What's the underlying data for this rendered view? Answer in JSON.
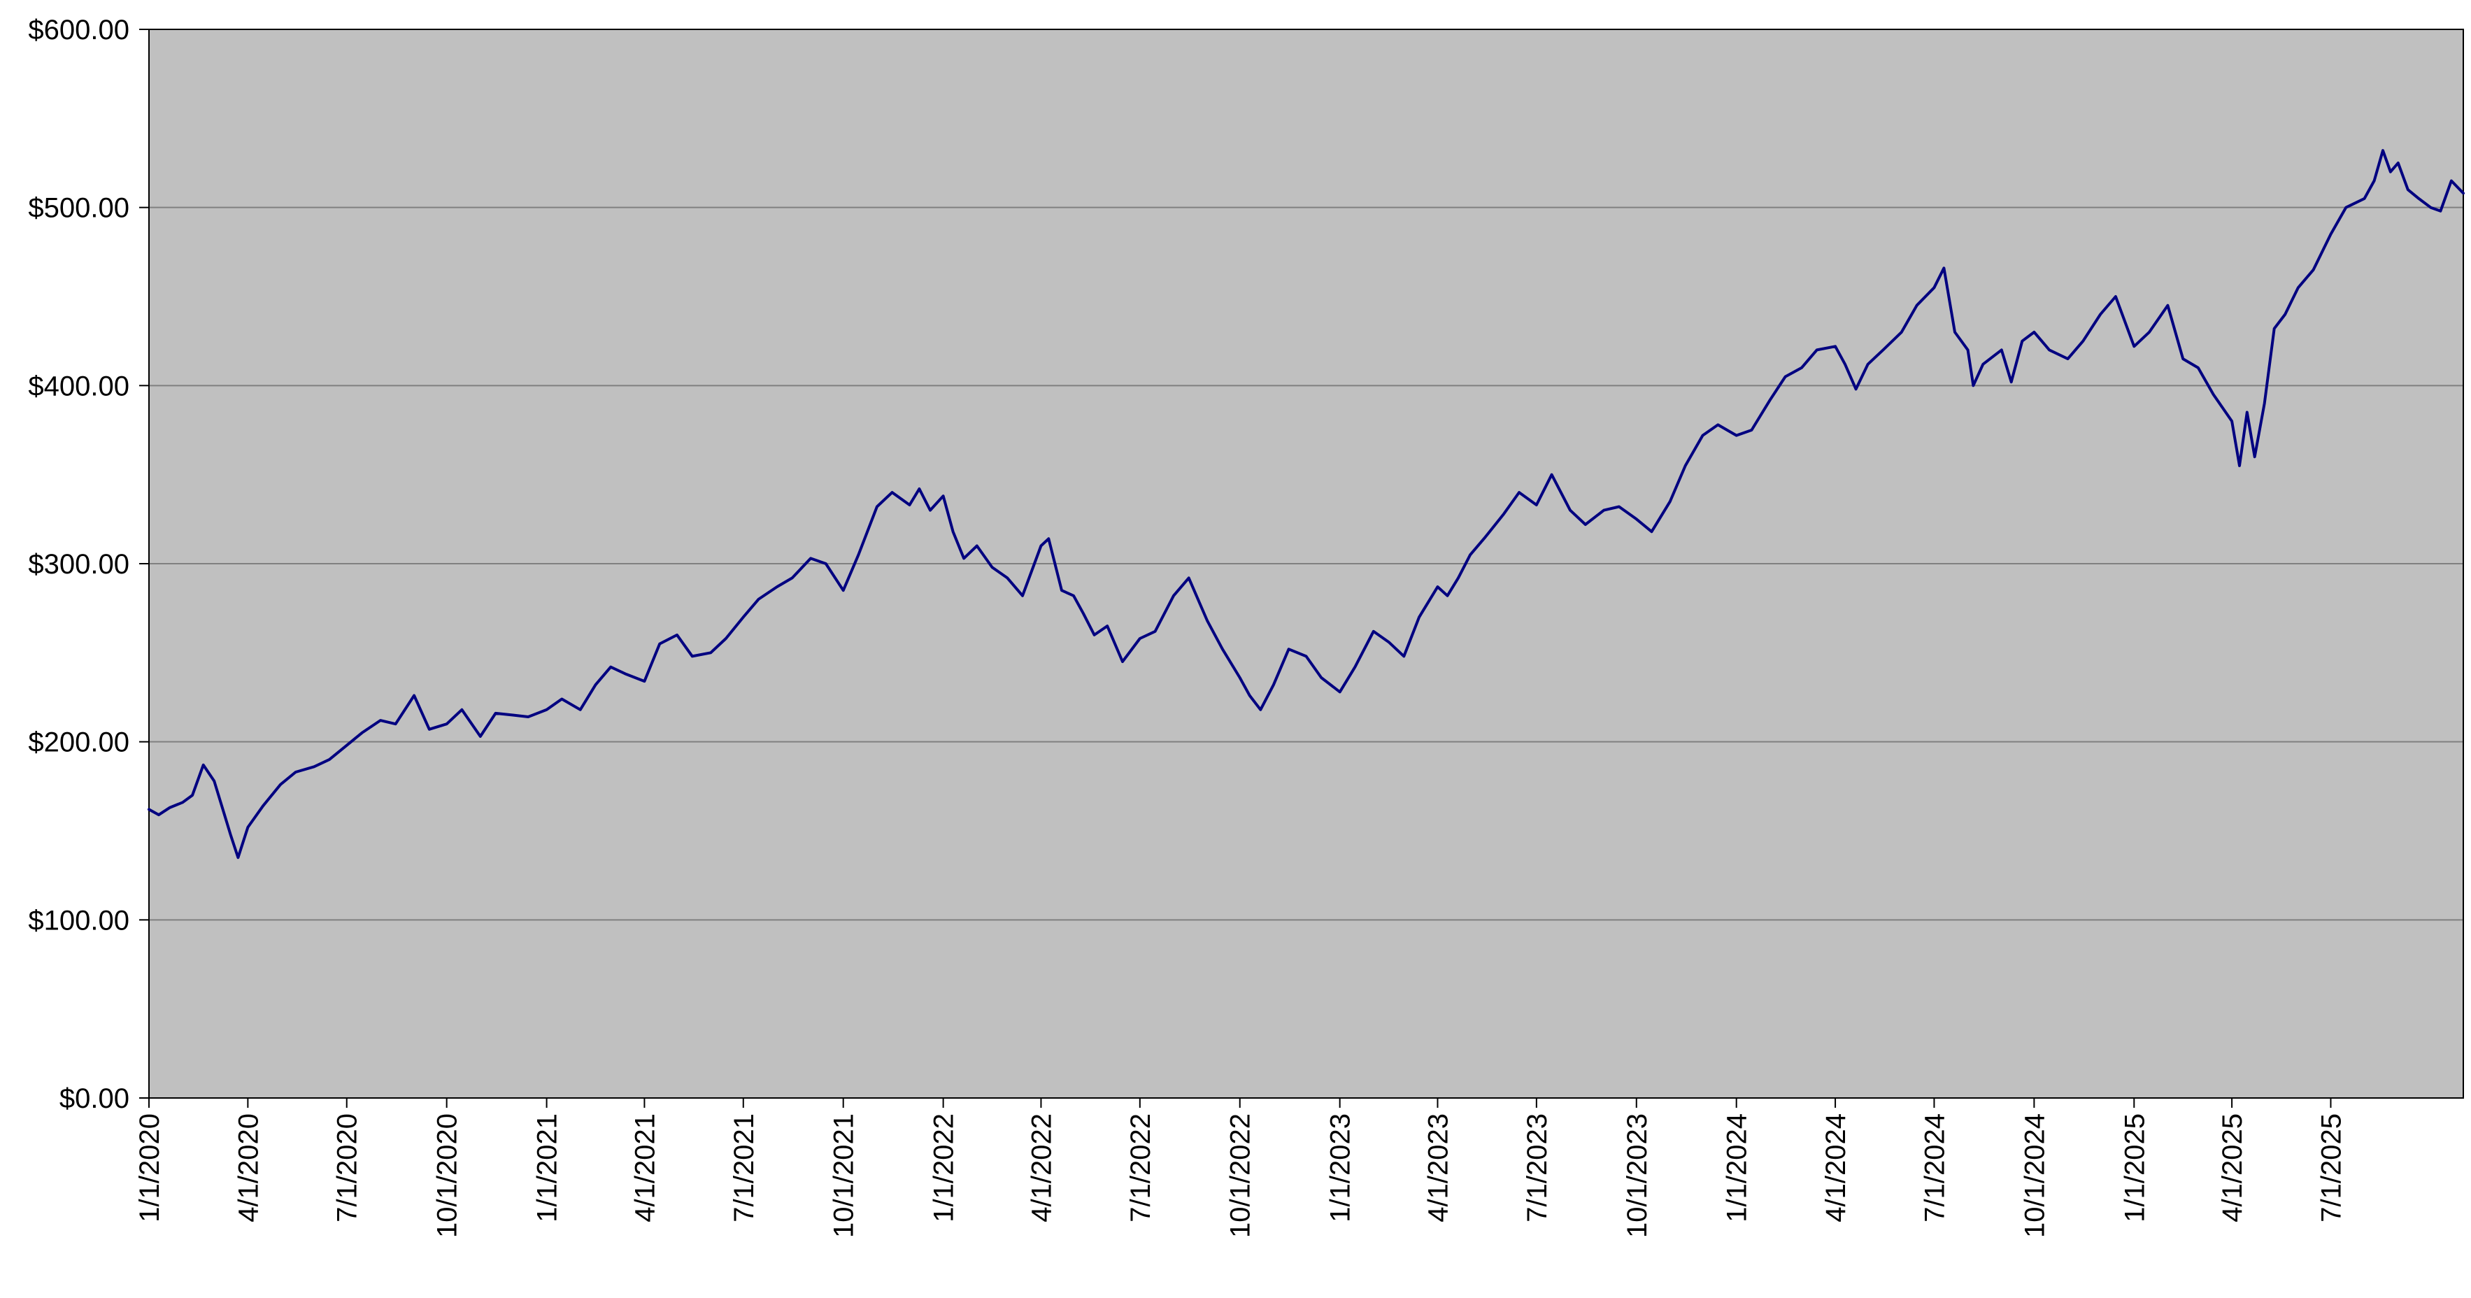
{
  "chart_data": {
    "type": "line",
    "title": "",
    "xlabel": "",
    "ylabel": "",
    "x_range": [
      "2020-01-01",
      "2025-10-31"
    ],
    "ylim": [
      0,
      600
    ],
    "y_ticks": [
      0,
      100,
      200,
      300,
      400,
      500,
      600
    ],
    "y_tick_labels": [
      "$0.00",
      "$100.00",
      "$200.00",
      "$300.00",
      "$400.00",
      "$500.00",
      "$600.00"
    ],
    "x_tick_dates": [
      "2020-01-01",
      "2020-04-01",
      "2020-07-01",
      "2020-10-01",
      "2021-01-01",
      "2021-04-01",
      "2021-07-01",
      "2021-10-01",
      "2022-01-01",
      "2022-04-01",
      "2022-07-01",
      "2022-10-01",
      "2023-01-01",
      "2023-04-01",
      "2023-07-01",
      "2023-10-01",
      "2024-01-01",
      "2024-04-01",
      "2024-07-01",
      "2024-10-01",
      "2025-01-01",
      "2025-04-01",
      "2025-07-01"
    ],
    "x_tick_labels": [
      "1/1/2020",
      "4/1/2020",
      "7/1/2020",
      "10/1/2020",
      "1/1/2021",
      "4/1/2021",
      "7/1/2021",
      "10/1/2021",
      "1/1/2022",
      "4/1/2022",
      "7/1/2022",
      "10/1/2022",
      "1/1/2023",
      "4/1/2023",
      "7/1/2023",
      "10/1/2023",
      "1/1/2024",
      "4/1/2024",
      "7/1/2024",
      "10/1/2024",
      "1/1/2025",
      "4/1/2025",
      "7/1/2025"
    ],
    "grid": true,
    "legend": "none",
    "colors": {
      "line": "#000080",
      "plot_background": "#c0c0c0",
      "gridline": "#808080",
      "axis": "#000000"
    },
    "series": [
      {
        "points": [
          [
            "2020-01-01",
            162
          ],
          [
            "2020-01-10",
            159
          ],
          [
            "2020-01-20",
            163
          ],
          [
            "2020-02-01",
            166
          ],
          [
            "2020-02-10",
            170
          ],
          [
            "2020-02-20",
            187
          ],
          [
            "2020-03-01",
            178
          ],
          [
            "2020-03-10",
            160
          ],
          [
            "2020-03-16",
            148
          ],
          [
            "2020-03-23",
            135
          ],
          [
            "2020-04-01",
            152
          ],
          [
            "2020-04-15",
            164
          ],
          [
            "2020-05-01",
            176
          ],
          [
            "2020-05-15",
            183
          ],
          [
            "2020-06-01",
            186
          ],
          [
            "2020-06-15",
            190
          ],
          [
            "2020-07-01",
            198
          ],
          [
            "2020-07-15",
            205
          ],
          [
            "2020-08-01",
            212
          ],
          [
            "2020-08-15",
            210
          ],
          [
            "2020-09-01",
            226
          ],
          [
            "2020-09-15",
            207
          ],
          [
            "2020-10-01",
            210
          ],
          [
            "2020-10-15",
            218
          ],
          [
            "2020-11-01",
            203
          ],
          [
            "2020-11-15",
            216
          ],
          [
            "2020-12-01",
            215
          ],
          [
            "2020-12-15",
            214
          ],
          [
            "2021-01-01",
            218
          ],
          [
            "2021-01-15",
            224
          ],
          [
            "2021-02-01",
            218
          ],
          [
            "2021-02-15",
            232
          ],
          [
            "2021-03-01",
            242
          ],
          [
            "2021-03-15",
            238
          ],
          [
            "2021-04-01",
            234
          ],
          [
            "2021-04-15",
            255
          ],
          [
            "2021-05-01",
            260
          ],
          [
            "2021-05-15",
            248
          ],
          [
            "2021-06-01",
            250
          ],
          [
            "2021-06-15",
            258
          ],
          [
            "2021-07-01",
            270
          ],
          [
            "2021-07-15",
            280
          ],
          [
            "2021-08-01",
            287
          ],
          [
            "2021-08-15",
            292
          ],
          [
            "2021-09-01",
            303
          ],
          [
            "2021-09-15",
            300
          ],
          [
            "2021-10-01",
            285
          ],
          [
            "2021-10-15",
            305
          ],
          [
            "2021-11-01",
            332
          ],
          [
            "2021-11-15",
            340
          ],
          [
            "2021-12-01",
            333
          ],
          [
            "2021-12-10",
            342
          ],
          [
            "2021-12-20",
            330
          ],
          [
            "2022-01-01",
            338
          ],
          [
            "2022-01-10",
            318
          ],
          [
            "2022-01-20",
            303
          ],
          [
            "2022-02-01",
            310
          ],
          [
            "2022-02-15",
            298
          ],
          [
            "2022-03-01",
            292
          ],
          [
            "2022-03-15",
            282
          ],
          [
            "2022-04-01",
            310
          ],
          [
            "2022-04-08",
            314
          ],
          [
            "2022-04-20",
            285
          ],
          [
            "2022-05-01",
            282
          ],
          [
            "2022-05-10",
            272
          ],
          [
            "2022-05-20",
            260
          ],
          [
            "2022-06-01",
            265
          ],
          [
            "2022-06-15",
            245
          ],
          [
            "2022-07-01",
            258
          ],
          [
            "2022-07-15",
            262
          ],
          [
            "2022-08-01",
            282
          ],
          [
            "2022-08-15",
            292
          ],
          [
            "2022-09-01",
            268
          ],
          [
            "2022-09-15",
            252
          ],
          [
            "2022-10-01",
            236
          ],
          [
            "2022-10-10",
            226
          ],
          [
            "2022-10-20",
            218
          ],
          [
            "2022-11-01",
            232
          ],
          [
            "2022-11-15",
            252
          ],
          [
            "2022-12-01",
            248
          ],
          [
            "2022-12-15",
            236
          ],
          [
            "2023-01-01",
            228
          ],
          [
            "2023-01-15",
            242
          ],
          [
            "2023-02-01",
            262
          ],
          [
            "2023-02-15",
            256
          ],
          [
            "2023-03-01",
            248
          ],
          [
            "2023-03-15",
            270
          ],
          [
            "2023-04-01",
            287
          ],
          [
            "2023-04-10",
            282
          ],
          [
            "2023-04-20",
            292
          ],
          [
            "2023-05-01",
            305
          ],
          [
            "2023-05-15",
            315
          ],
          [
            "2023-06-01",
            328
          ],
          [
            "2023-06-15",
            340
          ],
          [
            "2023-07-01",
            333
          ],
          [
            "2023-07-15",
            350
          ],
          [
            "2023-08-01",
            330
          ],
          [
            "2023-08-15",
            322
          ],
          [
            "2023-09-01",
            330
          ],
          [
            "2023-09-15",
            332
          ],
          [
            "2023-10-01",
            325
          ],
          [
            "2023-10-15",
            318
          ],
          [
            "2023-11-01",
            335
          ],
          [
            "2023-11-15",
            355
          ],
          [
            "2023-12-01",
            372
          ],
          [
            "2023-12-15",
            378
          ],
          [
            "2024-01-01",
            372
          ],
          [
            "2024-01-15",
            375
          ],
          [
            "2024-02-01",
            392
          ],
          [
            "2024-02-15",
            405
          ],
          [
            "2024-03-01",
            410
          ],
          [
            "2024-03-15",
            420
          ],
          [
            "2024-04-01",
            422
          ],
          [
            "2024-04-10",
            412
          ],
          [
            "2024-04-20",
            398
          ],
          [
            "2024-05-01",
            412
          ],
          [
            "2024-05-15",
            420
          ],
          [
            "2024-06-01",
            430
          ],
          [
            "2024-06-15",
            445
          ],
          [
            "2024-07-01",
            455
          ],
          [
            "2024-07-10",
            466
          ],
          [
            "2024-07-20",
            430
          ],
          [
            "2024-08-01",
            420
          ],
          [
            "2024-08-06",
            400
          ],
          [
            "2024-08-15",
            412
          ],
          [
            "2024-09-01",
            420
          ],
          [
            "2024-09-10",
            402
          ],
          [
            "2024-09-20",
            425
          ],
          [
            "2024-10-01",
            430
          ],
          [
            "2024-10-15",
            420
          ],
          [
            "2024-11-01",
            415
          ],
          [
            "2024-11-15",
            425
          ],
          [
            "2024-12-01",
            440
          ],
          [
            "2024-12-15",
            450
          ],
          [
            "2025-01-01",
            422
          ],
          [
            "2025-01-15",
            430
          ],
          [
            "2025-02-01",
            445
          ],
          [
            "2025-02-15",
            415
          ],
          [
            "2025-03-01",
            410
          ],
          [
            "2025-03-15",
            395
          ],
          [
            "2025-04-01",
            380
          ],
          [
            "2025-04-08",
            355
          ],
          [
            "2025-04-15",
            385
          ],
          [
            "2025-04-22",
            360
          ],
          [
            "2025-05-01",
            390
          ],
          [
            "2025-05-10",
            432
          ],
          [
            "2025-05-20",
            440
          ],
          [
            "2025-06-01",
            455
          ],
          [
            "2025-06-15",
            465
          ],
          [
            "2025-07-01",
            485
          ],
          [
            "2025-07-15",
            500
          ],
          [
            "2025-08-01",
            505
          ],
          [
            "2025-08-10",
            515
          ],
          [
            "2025-08-18",
            532
          ],
          [
            "2025-08-25",
            520
          ],
          [
            "2025-09-01",
            525
          ],
          [
            "2025-09-10",
            510
          ],
          [
            "2025-09-20",
            505
          ],
          [
            "2025-10-01",
            500
          ],
          [
            "2025-10-10",
            498
          ],
          [
            "2025-10-20",
            515
          ],
          [
            "2025-10-31",
            508
          ]
        ]
      }
    ]
  }
}
